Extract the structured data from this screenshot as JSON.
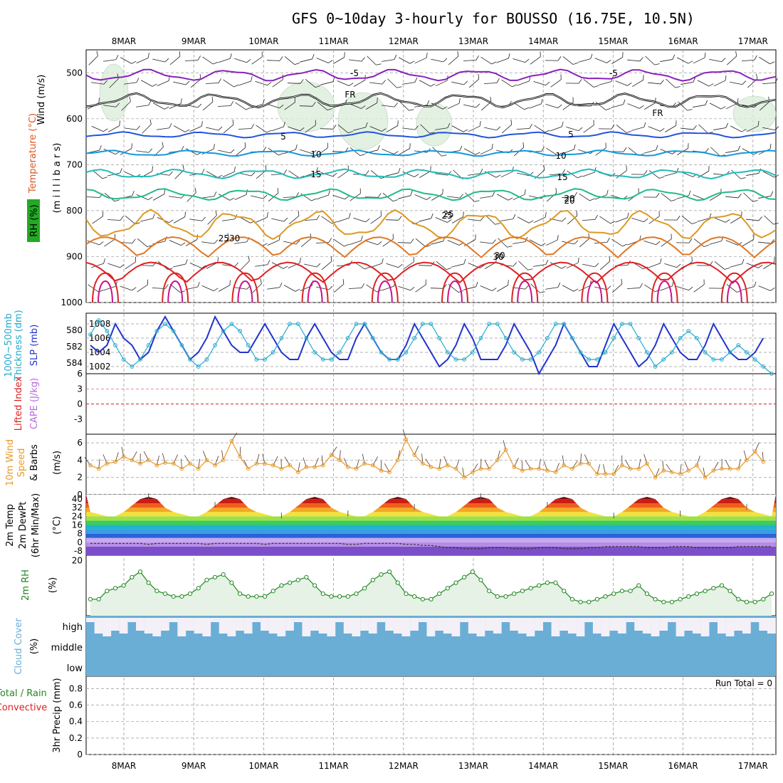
{
  "title": "GFS 0~10day 3-hourly for BOUSSO (16.75E, 10.5N)",
  "dates": [
    "8MAR",
    "9MAR",
    "10MAR",
    "11MAR",
    "12MAR",
    "13MAR",
    "14MAR",
    "15MAR",
    "16MAR",
    "17MAR"
  ],
  "colors": {
    "grid": "#999999",
    "slp": "#2233cc",
    "thick": "#22aacc",
    "wind": "#e89a2a",
    "rh": "#228822",
    "rhfill": "#e5f2e5",
    "cloud": "#6aaed6",
    "cloudlight": "#f4f0f8",
    "freeze": "#000000"
  },
  "panels": {
    "upper": {
      "label_wind": "Wind (m/s)",
      "label_temp": "Temperature (°C)",
      "label_rh": "RH (%)",
      "label_p": "(m i l l i b a r s)"
    },
    "slp": {
      "label_thick": "1000~500mb",
      "label_thick2": "Thickness (dm)",
      "label_slp": "SLP (mb)"
    },
    "cape": {
      "label_li": "Lifted Index",
      "label_cape": "CAPE (J/kg)"
    },
    "wind10": {
      "label1": "10m Wind",
      "label2": "Speed",
      "label3": "& Barbs",
      "unit": "(m/s)"
    },
    "temp2m": {
      "label1": "2m Temp",
      "label2": "2m DewPt",
      "label3": "(6hr Min/Max)",
      "unit": "(°C)"
    },
    "rh2m": {
      "label": "2m RH",
      "unit": "(%)"
    },
    "cloud": {
      "label": "Cloud Cover",
      "unit": "(%)",
      "levels": [
        "high",
        "middle",
        "low"
      ]
    },
    "precip": {
      "label1": "Total / Rain",
      "label2": "Convective",
      "label3": "3hr Precip (mm)",
      "run_total": "Run Total = 0"
    }
  },
  "chart_data": [
    {
      "type": "line",
      "title": "GFS 0~10day 3-hourly for BOUSSO (16.75E, 10.5N)",
      "ylabel": "(m i l l i b a r s)",
      "yticks": [
        500,
        600,
        700,
        800,
        900,
        1000
      ],
      "ylim": [
        450,
        1000
      ],
      "series": [
        {
          "name": "-5",
          "level_mb": 505,
          "amp": 10
        },
        {
          "name": "FR",
          "level_mb": 560,
          "amp": 12
        },
        {
          "name": "5",
          "level_mb": 635,
          "amp": 5
        },
        {
          "name": "10",
          "level_mb": 675,
          "amp": 5
        },
        {
          "name": "15",
          "level_mb": 720,
          "amp": 8
        },
        {
          "name": "20",
          "level_mb": 765,
          "amp": 10
        },
        {
          "name": "25",
          "level_mb": 830,
          "amp": 25
        },
        {
          "name": "30",
          "level_mb": 880,
          "amp": 45
        },
        {
          "name": "",
          "level_mb": 935,
          "amp": 45
        }
      ],
      "contour_labels": [
        "-5",
        "FR",
        "5",
        "10",
        "15",
        "20",
        "25",
        "2530",
        "30",
        "-5",
        "FR",
        "5",
        "10",
        "15",
        "20",
        "25",
        "30"
      ]
    },
    {
      "type": "line",
      "ylabel": "SLP (mb)",
      "yticks_left": [
        580,
        582,
        584
      ],
      "yticks_right": [
        1002,
        1004,
        1006,
        1008
      ],
      "ylim": [
        1001,
        1009.5
      ],
      "series": [
        {
          "name": "SLP",
          "values": [
            1005,
            1004,
            1005,
            1008,
            1006,
            1005,
            1003,
            1004,
            1007,
            1009,
            1007,
            1005,
            1003,
            1004,
            1006,
            1009,
            1007,
            1005,
            1004,
            1004,
            1006,
            1008,
            1006,
            1004,
            1003,
            1003,
            1006,
            1008,
            1006,
            1004,
            1003,
            1003,
            1006,
            1008,
            1006,
            1004,
            1003,
            1003,
            1005,
            1008,
            1006,
            1004,
            1002,
            1003,
            1005,
            1008,
            1006,
            1003,
            1003,
            1003,
            1005,
            1008,
            1006,
            1004,
            1001,
            1003,
            1005,
            1008,
            1006,
            1004,
            1002,
            1002,
            1005,
            1008,
            1006,
            1004,
            1002,
            1003,
            1005,
            1008,
            1006,
            1004,
            1003,
            1003,
            1005,
            1008,
            1006,
            1004,
            1003,
            1003,
            1004,
            1006
          ]
        },
        {
          "name": "Thickness",
          "values": [
            1006.5,
            1008.5,
            1007,
            1005,
            1003,
            1002,
            1003,
            1005,
            1007,
            1008,
            1007,
            1005,
            1003,
            1002,
            1003,
            1005,
            1007,
            1008,
            1007,
            1005,
            1003,
            1003,
            1004,
            1006,
            1008,
            1008,
            1006,
            1004,
            1003,
            1003,
            1004,
            1006,
            1008,
            1008,
            1006,
            1004,
            1003,
            1003,
            1004,
            1006,
            1008,
            1008,
            1006,
            1004,
            1003,
            1003,
            1004,
            1006,
            1008,
            1008,
            1006,
            1004,
            1003,
            1003,
            1004,
            1006,
            1008,
            1008,
            1006,
            1004,
            1003,
            1003,
            1004,
            1006,
            1008,
            1008,
            1006,
            1004,
            1002,
            1003,
            1004,
            1006,
            1007,
            1006,
            1004,
            1003,
            1003,
            1004,
            1005,
            1004,
            1003,
            1002,
            1001
          ]
        }
      ]
    },
    {
      "type": "line",
      "ylabel": "CAPE (J/kg)",
      "yticks": [
        -3,
        0,
        3,
        6
      ],
      "ylim": [
        -6,
        6
      ],
      "series": [
        {
          "name": "Lifted Index",
          "values": [
            0
          ]
        }
      ]
    },
    {
      "type": "line",
      "ylabel": "(m/s)",
      "yticks": [
        0,
        2,
        4,
        6
      ],
      "ylim": [
        0,
        7
      ],
      "series": [
        {
          "name": "Speed",
          "values": [
            3.4,
            3.0,
            3.6,
            3.8,
            4.4,
            4.0,
            3.6,
            4.0,
            3.4,
            3.7,
            3.6,
            3.0,
            3.6,
            3.0,
            4.0,
            3.4,
            4.0,
            6.2,
            4.4,
            3.0,
            3.6,
            3.6,
            3.4,
            3.0,
            3.4,
            2.6,
            3.2,
            3.2,
            3.4,
            4.6,
            4.0,
            3.2,
            3.0,
            3.6,
            3.4,
            2.8,
            2.6,
            4.0,
            6.4,
            4.6,
            3.6,
            3.2,
            3.0,
            3.4,
            3.0,
            2.0,
            2.6,
            3.0,
            3.0,
            4.0,
            5.2,
            3.2,
            2.8,
            3.0,
            3.0,
            2.8,
            2.6,
            3.4,
            3.0,
            3.6,
            3.6,
            2.4,
            2.4,
            2.4,
            3.4,
            3.0,
            3.0,
            3.6,
            2.0,
            2.8,
            2.6,
            2.4,
            2.8,
            3.4,
            2.0,
            2.8,
            3.0,
            3.0,
            3.0,
            4.0,
            5.0,
            3.8
          ]
        }
      ]
    },
    {
      "type": "area",
      "ylabel": "(°C)",
      "yticks": [
        -8,
        0,
        8,
        16,
        24,
        32,
        40
      ],
      "ylim": [
        -12,
        44
      ],
      "series": [
        {
          "name": "2m Temp",
          "values": [
            28,
            26,
            24,
            24,
            28,
            34,
            40,
            42,
            40,
            32,
            28,
            26,
            24,
            24,
            28,
            34,
            40,
            42,
            40,
            32,
            28,
            26,
            24,
            24,
            28,
            34,
            40,
            42,
            40,
            32,
            28,
            26,
            24,
            24,
            28,
            34,
            40,
            42,
            40,
            32,
            28,
            26,
            24,
            24,
            28,
            34,
            40,
            42,
            40,
            32,
            28,
            26,
            24,
            24,
            28,
            34,
            40,
            42,
            40,
            32,
            28,
            26,
            24,
            24,
            28,
            34,
            40,
            42,
            40,
            32,
            28,
            26,
            24,
            24,
            28,
            34,
            40,
            42,
            40,
            32,
            28,
            26,
            24
          ]
        },
        {
          "name": "2m DewPt",
          "values": [
            -1,
            -1,
            -1,
            -1,
            -1,
            -1,
            -1,
            -2,
            -1,
            -1,
            -1,
            -1,
            -1,
            -1,
            -2,
            -1,
            -1,
            -1,
            -1,
            -1,
            -1,
            -2,
            -1,
            -1,
            -1,
            -1,
            -1,
            -1,
            -1,
            -1,
            -1,
            -2,
            -2,
            -1,
            -1,
            -1,
            -1,
            -1,
            -2,
            -2,
            -3,
            -3,
            -4,
            -5,
            -5,
            -6,
            -6,
            -6,
            -5,
            -5,
            -5,
            -6,
            -6,
            -6,
            -5,
            -5,
            -5,
            -6,
            -6,
            -6,
            -5,
            -5,
            -4,
            -4,
            -4,
            -4,
            -4,
            -5,
            -5,
            -5,
            -4,
            -4,
            -4,
            -5,
            -5,
            -5,
            -5,
            -5,
            -4,
            -4,
            -4,
            -4,
            -4
          ]
        }
      ]
    },
    {
      "type": "area",
      "ylabel": "(%)",
      "yticks": [
        20
      ],
      "ylim": [
        0,
        22
      ],
      "series": [
        {
          "name": "2m RH",
          "values": [
            6,
            6,
            9,
            10,
            11,
            14,
            16,
            12,
            9,
            8,
            7,
            7,
            8,
            10,
            13,
            14,
            15,
            12,
            8,
            7,
            7,
            7,
            9,
            11,
            12,
            13,
            14,
            11,
            8,
            7,
            7,
            7,
            8,
            10,
            13,
            15,
            16,
            12,
            8,
            7,
            6,
            6,
            8,
            10,
            12,
            14,
            16,
            13,
            9,
            7,
            7,
            8,
            9,
            10,
            11,
            12,
            12,
            9,
            6,
            5,
            5,
            6,
            7,
            8,
            9,
            9,
            11,
            8,
            6,
            5,
            5,
            6,
            7,
            8,
            9,
            10,
            11,
            9,
            6,
            5,
            5,
            6,
            8
          ]
        }
      ]
    },
    {
      "type": "bar",
      "ylabel": "(%)",
      "categories": [
        "high",
        "middle",
        "low"
      ],
      "series": [
        {
          "name": "Cloud Cover",
          "values": [
            100,
            100,
            100
          ]
        }
      ]
    },
    {
      "type": "bar",
      "ylabel": "3hr Precip (mm)",
      "yticks": [
        0,
        0.2,
        0.4,
        0.6,
        0.8
      ],
      "ylim": [
        0,
        0.95
      ],
      "series": [
        {
          "name": "Total / Rain",
          "values": [
            0
          ]
        }
      ]
    }
  ]
}
